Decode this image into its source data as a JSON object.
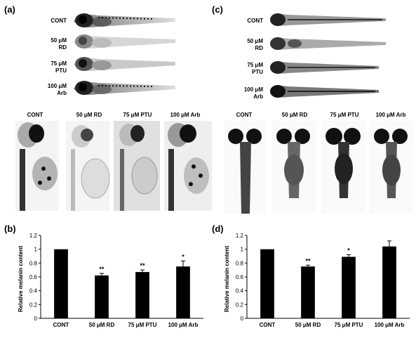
{
  "panels": {
    "a": "(a)",
    "b": "(b)",
    "c": "(c)",
    "d": "(d)"
  },
  "side_labels_a": [
    [
      "CONT",
      ""
    ],
    [
      "50 μM",
      "RD"
    ],
    [
      "75 μM",
      "PTU"
    ],
    [
      "100 μM",
      "Arb"
    ]
  ],
  "side_labels_c": [
    [
      "CONT",
      ""
    ],
    [
      "50 μM",
      "RD"
    ],
    [
      "75 μM",
      "PTU"
    ],
    [
      "100 μM",
      "Arb"
    ]
  ],
  "closeup_labels_a": [
    "CONT",
    "50 μM RD",
    "75 μM PTU",
    "100 μM Arb"
  ],
  "closeup_labels_c": [
    "CONT",
    "50 μM RD",
    "75 μM PTU",
    "100 μM Arb"
  ],
  "chart_data": [
    {
      "type": "bar",
      "categories": [
        "CONT",
        "50 μM RD",
        "75 μM PTU",
        "100 μM Arb"
      ],
      "values": [
        1.0,
        0.62,
        0.67,
        0.75
      ],
      "errors": [
        0,
        0.03,
        0.03,
        0.08
      ],
      "annotations": [
        "",
        "**",
        "**",
        "*"
      ],
      "ylabel": "Relative melanin content",
      "ylim": [
        0,
        1.2
      ],
      "yticks": [
        "0",
        "0.2",
        "0.4",
        "0.6",
        "0.8",
        "1",
        "1.2"
      ],
      "bar_color": "#000000"
    },
    {
      "type": "bar",
      "categories": [
        "CONT",
        "50 μM RD",
        "75 μM PTU",
        "100 μM Arb"
      ],
      "values": [
        1.0,
        0.75,
        0.89,
        1.04
      ],
      "errors": [
        0,
        0.02,
        0.03,
        0.08
      ],
      "annotations": [
        "",
        "**",
        "*",
        ""
      ],
      "ylabel": "Relative melanin content",
      "ylim": [
        0,
        1.2
      ],
      "yticks": [
        "0",
        "0.2",
        "0.4",
        "0.6",
        "0.8",
        "1",
        "1.2"
      ],
      "bar_color": "#000000"
    }
  ]
}
